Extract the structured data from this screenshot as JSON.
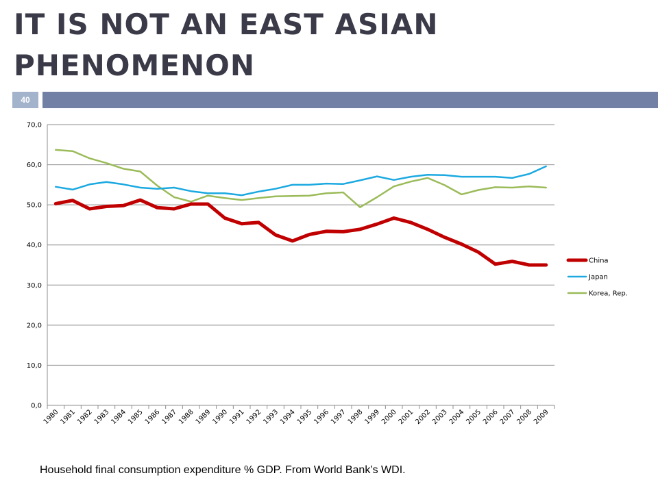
{
  "slide": {
    "title": "IT IS NOT AN EAST ASIAN PHENOMENON",
    "page_number": "40",
    "caption": "Household final consumption expenditure % GDP. From World Bank’s WDI."
  },
  "colors": {
    "title": "#3a3a48",
    "rule": "#7180a4",
    "page_badge": "#a3b3cc",
    "gridline": "#8c8c8c"
  },
  "chart_data": {
    "type": "line",
    "title": "",
    "xlabel": "",
    "ylabel": "",
    "grid": true,
    "legend_position": "right",
    "ylim": [
      0,
      70
    ],
    "y_ticks": [
      "0,0",
      "10,0",
      "20,0",
      "30,0",
      "40,0",
      "50,0",
      "60,0",
      "70,0"
    ],
    "categories": [
      "1980",
      "1981",
      "1982",
      "1983",
      "1984",
      "1985",
      "1986",
      "1987",
      "1988",
      "1989",
      "1990",
      "1991",
      "1992",
      "1993",
      "1994",
      "1995",
      "1996",
      "1997",
      "1998",
      "1999",
      "2000",
      "2001",
      "2002",
      "2003",
      "2004",
      "2005",
      "2006",
      "2007",
      "2008",
      "2009"
    ],
    "series": [
      {
        "name": "China",
        "color": "#c00000",
        "values": [
          50.3,
          51.1,
          49.0,
          49.6,
          49.8,
          51.2,
          49.3,
          49.0,
          50.2,
          50.2,
          46.7,
          45.3,
          45.6,
          42.5,
          41.0,
          42.6,
          43.4,
          43.3,
          43.9,
          45.2,
          46.7,
          45.6,
          43.9,
          41.9,
          40.2,
          38.2,
          35.2,
          35.9,
          35.0,
          35.0
        ]
      },
      {
        "name": "Japan",
        "color": "#1ba9e0",
        "values": [
          54.5,
          53.8,
          55.1,
          55.7,
          55.1,
          54.3,
          54.0,
          54.3,
          53.4,
          52.9,
          52.9,
          52.4,
          53.3,
          54.0,
          55.0,
          55.0,
          55.3,
          55.2,
          56.1,
          57.1,
          56.2,
          57.0,
          57.5,
          57.4,
          57.0,
          57.0,
          57.0,
          56.7,
          57.7,
          59.6
        ]
      },
      {
        "name": "Korea, Rep.",
        "color": "#9bbb59",
        "values": [
          63.7,
          63.4,
          61.6,
          60.4,
          59.0,
          58.3,
          54.8,
          51.9,
          50.8,
          52.3,
          51.7,
          51.2,
          51.7,
          52.1,
          52.2,
          52.3,
          52.9,
          53.1,
          49.4,
          51.9,
          54.6,
          55.8,
          56.7,
          54.9,
          52.6,
          53.7,
          54.4,
          54.3,
          54.6,
          54.3
        ]
      }
    ]
  }
}
